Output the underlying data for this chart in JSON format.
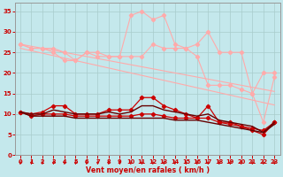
{
  "x": [
    0,
    1,
    2,
    3,
    4,
    5,
    6,
    7,
    8,
    9,
    10,
    11,
    12,
    13,
    14,
    15,
    16,
    17,
    18,
    19,
    20,
    21,
    22,
    23
  ],
  "line_pink_jagged1": [
    27,
    26,
    26,
    26,
    25,
    23,
    25,
    25,
    24,
    24,
    34,
    35,
    33,
    34,
    27,
    26,
    27,
    30,
    25,
    25,
    25,
    15,
    20,
    20
  ],
  "line_pink_jagged2": [
    27,
    26,
    26,
    25,
    23,
    23,
    25,
    24,
    24,
    24,
    24,
    24,
    27,
    26,
    26,
    26,
    24,
    17,
    17,
    17,
    16,
    15,
    8,
    19
  ],
  "line_pink_trend1": [
    27,
    26.5,
    26,
    25.5,
    25,
    24.5,
    24,
    23.5,
    23,
    22.5,
    22,
    21.5,
    21,
    20.5,
    20,
    19.5,
    19,
    18.5,
    18,
    17.5,
    17,
    16.5,
    16,
    15.5
  ],
  "line_pink_trend2": [
    26,
    25.4,
    24.8,
    24.2,
    23.6,
    23,
    22.4,
    21.8,
    21.2,
    20.6,
    20,
    19.4,
    18.8,
    18.2,
    17.6,
    17,
    16.4,
    15.8,
    15.2,
    14.6,
    14,
    13.4,
    12.8,
    12.2
  ],
  "line_red_upper": [
    10.5,
    10,
    10.5,
    12,
    12,
    10,
    10,
    10,
    11,
    11,
    11,
    14,
    14,
    12,
    11,
    10,
    9,
    12,
    8,
    8,
    7,
    6,
    5,
    8
  ],
  "line_red_lower": [
    10.5,
    9.5,
    10,
    10,
    10,
    9.5,
    9.5,
    9.5,
    9.5,
    9.5,
    9.5,
    10,
    10,
    9.5,
    9,
    9,
    9,
    9,
    8,
    7.5,
    7,
    6.5,
    6,
    8
  ],
  "line_dark_upper": [
    10.5,
    10,
    10,
    11,
    10.5,
    10,
    10,
    10,
    10.5,
    10,
    10.5,
    12,
    12,
    11,
    10.5,
    10,
    9.5,
    10,
    8.5,
    8,
    7.5,
    7,
    5.5,
    8
  ],
  "line_dark_lower": [
    10.5,
    9.5,
    9.5,
    9.5,
    9.5,
    9,
    9,
    9,
    9,
    9,
    9,
    9,
    9,
    9,
    8.5,
    8.5,
    8.5,
    8,
    7.5,
    7,
    6.5,
    6,
    5.5,
    7.5
  ],
  "bg_color": "#c4e8ec",
  "grid_color": "#a8cccc",
  "line_pink_color": "#ffaaaa",
  "line_red_color": "#cc0000",
  "line_dark_color": "#660000",
  "xlabel": "Vent moyen/en rafales ( km/h )",
  "xlabel_color": "#cc0000",
  "tick_color": "#cc0000",
  "ylim": [
    0,
    37
  ],
  "xlim": [
    -0.5,
    23.5
  ],
  "yticks": [
    0,
    5,
    10,
    15,
    20,
    25,
    30,
    35
  ],
  "xticks": [
    0,
    1,
    2,
    3,
    4,
    5,
    6,
    7,
    8,
    9,
    10,
    11,
    12,
    13,
    14,
    15,
    16,
    17,
    18,
    19,
    20,
    21,
    22,
    23
  ]
}
